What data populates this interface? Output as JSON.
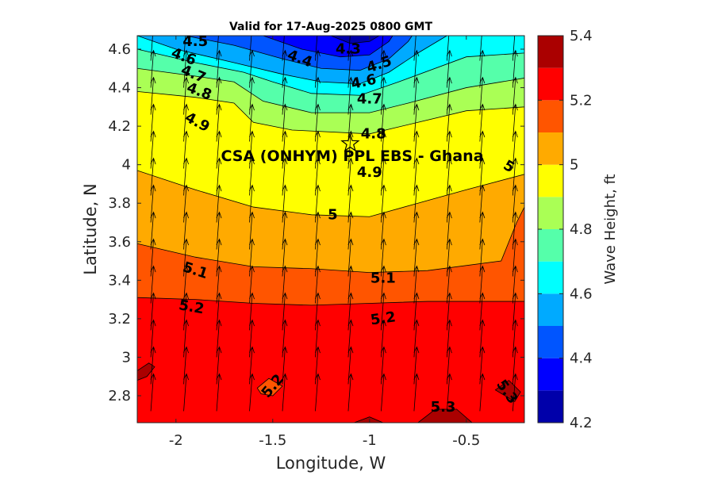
{
  "chart_data": {
    "type": "contour",
    "title": "Valid for 17-Aug-2025 0800 GMT",
    "xlabel": "Longitude, W",
    "ylabel": "Latitude, N",
    "xlim": [
      -2.2,
      -0.2
    ],
    "ylim": [
      2.66,
      4.67
    ],
    "x_ticks": [
      -2,
      -1.5,
      -1,
      -0.5
    ],
    "x_tick_labels": [
      "-2",
      "-1.5",
      "-1",
      "-0.5"
    ],
    "y_ticks": [
      2.8,
      3.0,
      3.2,
      3.4,
      3.6,
      3.8,
      4.0,
      4.2,
      4.4,
      4.6
    ],
    "y_tick_labels": [
      "2.8",
      "3",
      "3.2",
      "3.4",
      "3.6",
      "3.8",
      "4",
      "4.2",
      "4.4",
      "4.6"
    ],
    "colorbar": {
      "label": "Wave Height, ft",
      "min": 4.2,
      "max": 5.4,
      "tick_values": [
        4.2,
        4.4,
        4.6,
        4.8,
        5.0,
        5.2,
        5.4
      ],
      "tick_labels": [
        "4.2",
        "4.4",
        "4.6",
        "4.8",
        "5",
        "5.2",
        "5.4"
      ],
      "colors": [
        "#0000aa",
        "#0000ff",
        "#0055ff",
        "#00aaff",
        "#00ffff",
        "#55ffaa",
        "#aaff55",
        "#ffff00",
        "#ffaa00",
        "#ff5500",
        "#ff0000",
        "#aa0000"
      ]
    },
    "contour_levels": [
      4.3,
      4.4,
      4.5,
      4.6,
      4.7,
      4.8,
      4.9,
      5.0,
      5.1,
      5.2,
      5.3
    ],
    "contour_labels": [
      {
        "text": "4.5",
        "x": -1.9,
        "y": 4.64,
        "rotate": 0
      },
      {
        "text": "4.6",
        "x": -1.96,
        "y": 4.56,
        "rotate": 20
      },
      {
        "text": "4.7",
        "x": -1.91,
        "y": 4.47,
        "rotate": 22
      },
      {
        "text": "4.8",
        "x": -1.88,
        "y": 4.38,
        "rotate": 20
      },
      {
        "text": "4.9",
        "x": -1.89,
        "y": 4.22,
        "rotate": 28
      },
      {
        "text": "4.4",
        "x": -1.36,
        "y": 4.55,
        "rotate": 20
      },
      {
        "text": "4.3",
        "x": -1.11,
        "y": 4.6,
        "rotate": 0
      },
      {
        "text": "4.5",
        "x": -0.95,
        "y": 4.52,
        "rotate": -18
      },
      {
        "text": "4.6",
        "x": -1.03,
        "y": 4.43,
        "rotate": -12
      },
      {
        "text": "4.7",
        "x": -1.0,
        "y": 4.34,
        "rotate": 0
      },
      {
        "text": "4.8",
        "x": -0.98,
        "y": 4.16,
        "rotate": 0
      },
      {
        "text": "4.9",
        "x": -1.0,
        "y": 3.96,
        "rotate": 0
      },
      {
        "text": "5",
        "x": -0.28,
        "y": 3.99,
        "rotate": 30
      },
      {
        "text": "5",
        "x": -1.19,
        "y": 3.74,
        "rotate": 0
      },
      {
        "text": "5.1",
        "x": -1.9,
        "y": 3.45,
        "rotate": 18
      },
      {
        "text": "5.1",
        "x": -0.93,
        "y": 3.41,
        "rotate": 0
      },
      {
        "text": "5.2",
        "x": -1.92,
        "y": 3.26,
        "rotate": 10
      },
      {
        "text": "5.2",
        "x": -0.93,
        "y": 3.2,
        "rotate": -8
      },
      {
        "text": "5.2",
        "x": -1.5,
        "y": 2.85,
        "rotate": -50
      },
      {
        "text": "5.3",
        "x": -0.62,
        "y": 2.74,
        "rotate": 0
      },
      {
        "text": "5.3",
        "x": -0.29,
        "y": 2.82,
        "rotate": 55
      }
    ],
    "site": {
      "label": "CSA (ONHYM) PPL EBS  - Ghana",
      "x": -1.1,
      "y": 4.11,
      "marker": "star"
    },
    "wave_direction": "arrows pointing north-northeast across the domain",
    "grid": false,
    "colormap": "jet"
  }
}
